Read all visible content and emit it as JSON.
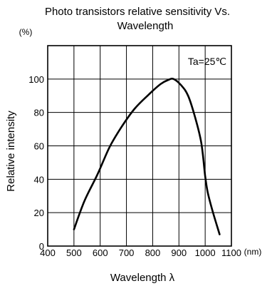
{
  "chart_data": {
    "type": "line",
    "title_lines": [
      "Photo transistors relative sensitivity Vs.",
      "Wavelength"
    ],
    "ylabel": "Relative intensity",
    "y_unit": "(%)",
    "xlabel": "Wavelength λ",
    "x_unit": "(nm)",
    "annotation": "Ta=25℃",
    "xlim": [
      400,
      1100
    ],
    "ylim": [
      0,
      120
    ],
    "x_ticks": [
      400,
      500,
      600,
      700,
      800,
      900,
      1000,
      1100
    ],
    "y_ticks": [
      0,
      20,
      40,
      60,
      80,
      100
    ],
    "grid": true,
    "series": [
      {
        "x": [
          500,
          540,
          590,
          635,
          680,
          730,
          780,
          830,
          860,
          880,
          910,
          935,
          960,
          985,
          1000,
          1010,
          1030,
          1055
        ],
        "y": [
          10,
          27,
          43,
          59,
          71,
          82,
          90,
          97,
          99.5,
          100,
          96,
          90,
          78,
          62,
          42,
          32,
          20,
          7
        ]
      }
    ]
  }
}
